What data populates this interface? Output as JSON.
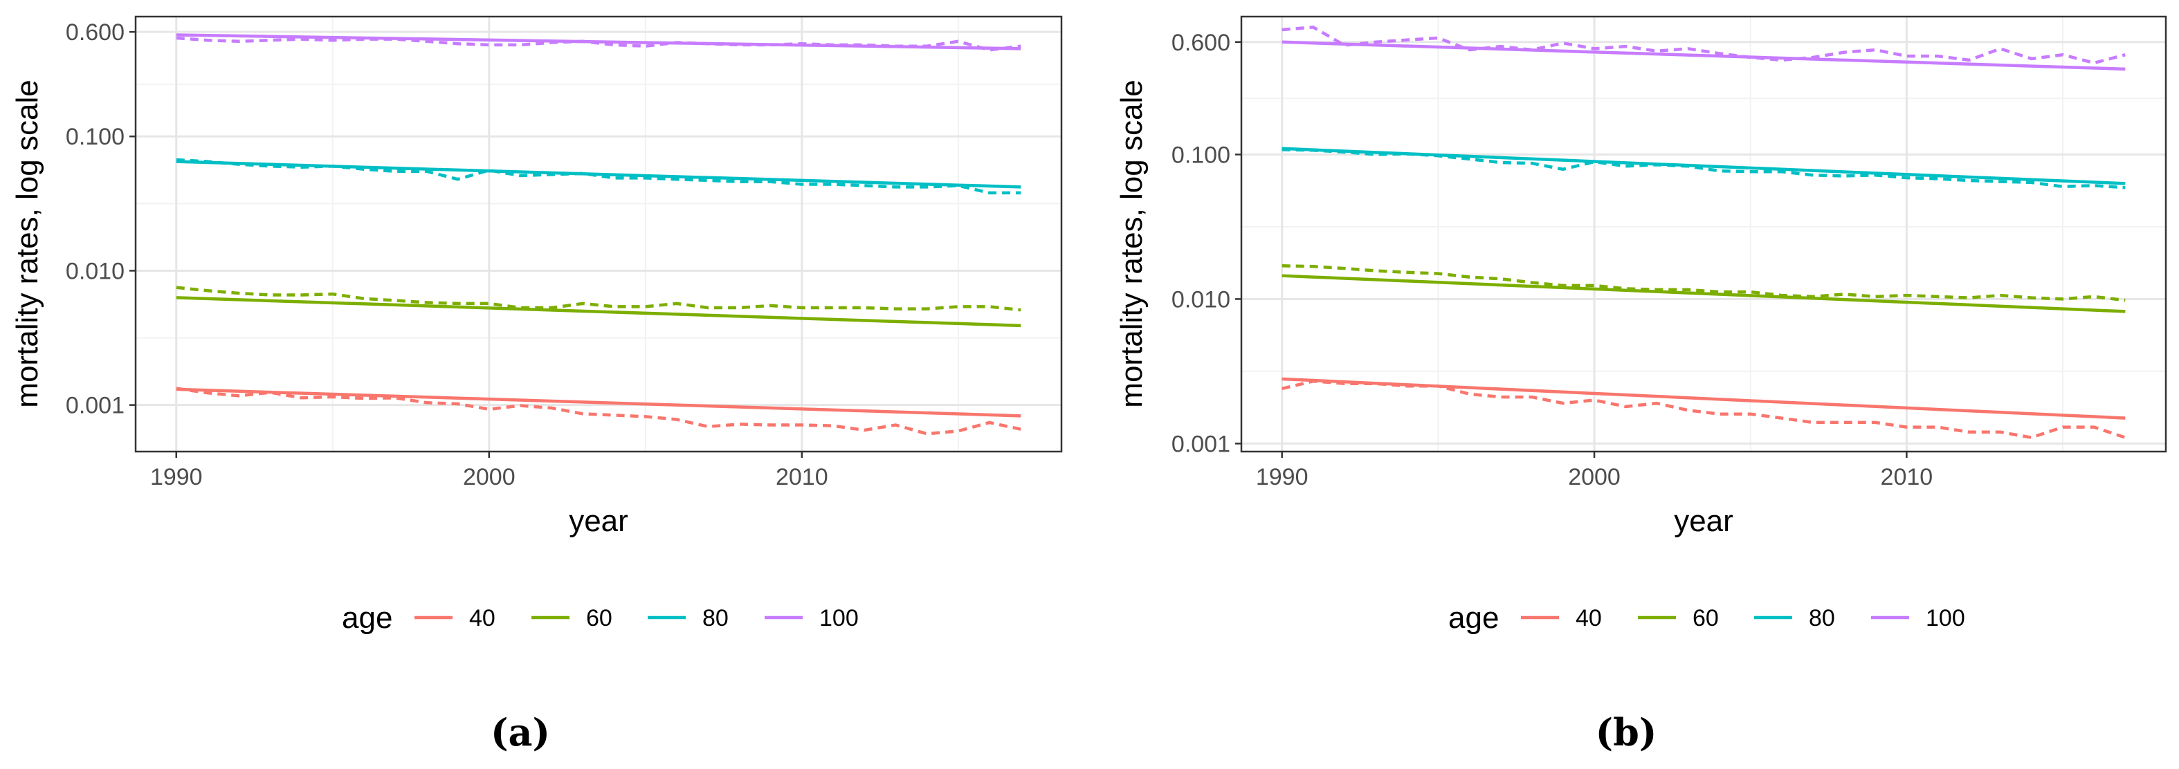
{
  "chart_data": [
    {
      "type": "line",
      "panel_label": "(a)",
      "xlabel": "year",
      "ylabel": "mortality rates, log scale",
      "y_scale": "log10",
      "xlim": [
        1988.7,
        2018.3
      ],
      "ylim": [
        0.00045,
        0.78
      ],
      "x_ticks": [
        1990,
        2000,
        2010
      ],
      "x_tick_labels": [
        "1990",
        "2000",
        "2010"
      ],
      "y_ticks": [
        0.001,
        0.01,
        0.1,
        0.6
      ],
      "y_tick_labels": [
        "0.001",
        "0.010",
        "0.100",
        "0.600"
      ],
      "legend_title": "age",
      "legend_position": "bottom",
      "x": [
        1990,
        1991,
        1992,
        1993,
        1994,
        1995,
        1996,
        1997,
        1998,
        1999,
        2000,
        2001,
        2002,
        2003,
        2004,
        2005,
        2006,
        2007,
        2008,
        2009,
        2010,
        2011,
        2012,
        2013,
        2014,
        2015,
        2016,
        2017
      ],
      "series": [
        {
          "name": "40",
          "color": "#F8766D",
          "fitted_endpoints": [
            0.00131,
            0.00083
          ],
          "observed": [
            0.00133,
            0.00123,
            0.00117,
            0.00124,
            0.00113,
            0.00115,
            0.00112,
            0.00113,
            0.00104,
            0.00102,
            0.00093,
            0.00099,
            0.00095,
            0.00086,
            0.00084,
            0.00082,
            0.00078,
            0.00069,
            0.00072,
            0.00071,
            0.00071,
            0.0007,
            0.00065,
            0.00071,
            0.00061,
            0.00064,
            0.00074,
            0.00066
          ]
        },
        {
          "name": "60",
          "color": "#7CAE00",
          "fitted_endpoints": [
            0.0063,
            0.0039
          ],
          "observed": [
            0.0075,
            0.0071,
            0.0068,
            0.0066,
            0.0066,
            0.0067,
            0.0062,
            0.006,
            0.0058,
            0.0057,
            0.0057,
            0.0053,
            0.0053,
            0.0057,
            0.0054,
            0.0054,
            0.0057,
            0.0053,
            0.0053,
            0.0055,
            0.0053,
            0.0053,
            0.0053,
            0.0052,
            0.0052,
            0.0054,
            0.0054,
            0.0051
          ]
        },
        {
          "name": "80",
          "color": "#00BFC4",
          "fitted_endpoints": [
            0.065,
            0.042
          ],
          "observed": [
            0.067,
            0.065,
            0.062,
            0.06,
            0.059,
            0.06,
            0.057,
            0.055,
            0.055,
            0.048,
            0.056,
            0.051,
            0.052,
            0.053,
            0.049,
            0.049,
            0.048,
            0.047,
            0.046,
            0.046,
            0.044,
            0.044,
            0.043,
            0.042,
            0.042,
            0.043,
            0.038,
            0.038
          ]
        },
        {
          "name": "100",
          "color": "#C77CFF",
          "fitted_endpoints": [
            0.57,
            0.45
          ],
          "observed": [
            0.54,
            0.52,
            0.51,
            0.52,
            0.53,
            0.52,
            0.53,
            0.53,
            0.51,
            0.49,
            0.48,
            0.48,
            0.5,
            0.51,
            0.48,
            0.47,
            0.5,
            0.49,
            0.48,
            0.48,
            0.49,
            0.48,
            0.48,
            0.47,
            0.47,
            0.51,
            0.44,
            0.47
          ]
        }
      ]
    },
    {
      "type": "line",
      "panel_label": "(b)",
      "xlabel": "year",
      "ylabel": "mortality rates, log scale",
      "y_scale": "log10",
      "xlim": [
        1988.7,
        2018.3
      ],
      "ylim": [
        0.00088,
        0.9
      ],
      "x_ticks": [
        1990,
        2000,
        2010
      ],
      "x_tick_labels": [
        "1990",
        "2000",
        "2010"
      ],
      "y_ticks": [
        0.001,
        0.01,
        0.1,
        0.6
      ],
      "y_tick_labels": [
        "0.001",
        "0.010",
        "0.100",
        "0.600"
      ],
      "legend_title": "age",
      "legend_position": "bottom",
      "x": [
        1990,
        1991,
        1992,
        1993,
        1994,
        1995,
        1996,
        1997,
        1998,
        1999,
        2000,
        2001,
        2002,
        2003,
        2004,
        2005,
        2006,
        2007,
        2008,
        2009,
        2010,
        2011,
        2012,
        2013,
        2014,
        2015,
        2016,
        2017
      ],
      "series": [
        {
          "name": "40",
          "color": "#F8766D",
          "fitted_endpoints": [
            0.0028,
            0.0015
          ],
          "observed": [
            0.0024,
            0.0027,
            0.0026,
            0.0026,
            0.0025,
            0.0025,
            0.0022,
            0.0021,
            0.0021,
            0.0019,
            0.002,
            0.0018,
            0.0019,
            0.0017,
            0.0016,
            0.0016,
            0.0015,
            0.0014,
            0.0014,
            0.0014,
            0.0013,
            0.0013,
            0.0012,
            0.0012,
            0.0011,
            0.0013,
            0.0013,
            0.0011
          ]
        },
        {
          "name": "60",
          "color": "#7CAE00",
          "fitted_endpoints": [
            0.0145,
            0.0082
          ],
          "observed": [
            0.017,
            0.0168,
            0.0163,
            0.0157,
            0.0153,
            0.015,
            0.0142,
            0.0138,
            0.013,
            0.0124,
            0.0124,
            0.0118,
            0.0116,
            0.0116,
            0.0112,
            0.0112,
            0.0106,
            0.0104,
            0.0108,
            0.0104,
            0.0106,
            0.0104,
            0.0102,
            0.0106,
            0.0102,
            0.01,
            0.0104,
            0.0098
          ]
        },
        {
          "name": "80",
          "color": "#00BFC4",
          "fitted_endpoints": [
            0.11,
            0.063
          ],
          "observed": [
            0.108,
            0.107,
            0.104,
            0.1,
            0.101,
            0.098,
            0.093,
            0.088,
            0.087,
            0.079,
            0.089,
            0.083,
            0.085,
            0.083,
            0.077,
            0.076,
            0.076,
            0.072,
            0.071,
            0.072,
            0.069,
            0.068,
            0.066,
            0.065,
            0.064,
            0.06,
            0.061,
            0.059
          ]
        },
        {
          "name": "100",
          "color": "#C77CFF",
          "fitted_endpoints": [
            0.6,
            0.39
          ],
          "observed": [
            0.73,
            0.76,
            0.57,
            0.6,
            0.62,
            0.64,
            0.53,
            0.56,
            0.53,
            0.59,
            0.54,
            0.56,
            0.52,
            0.54,
            0.5,
            0.47,
            0.45,
            0.47,
            0.51,
            0.53,
            0.48,
            0.48,
            0.45,
            0.54,
            0.46,
            0.49,
            0.43,
            0.49
          ]
        }
      ]
    }
  ]
}
